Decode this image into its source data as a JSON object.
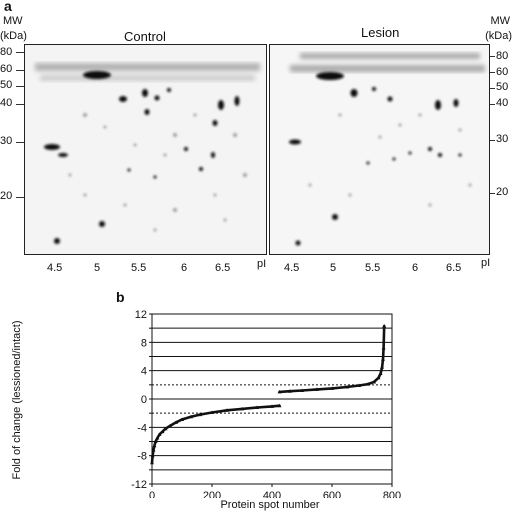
{
  "panel_a": {
    "letter": "a",
    "mw_title_line1": "MW",
    "mw_title_line2": "(kDa)",
    "mw_ticks": [
      "80",
      "60",
      "50",
      "40",
      "30",
      "20"
    ],
    "gels": [
      {
        "label": "Control",
        "pi_ticks": [
          "4.5",
          "5",
          "5.5",
          "6",
          "6.5"
        ],
        "pi_label": "pI"
      },
      {
        "label": "Lesion",
        "pi_ticks": [
          "4.5",
          "5",
          "5.5",
          "6",
          "6.5"
        ],
        "pi_label": "pI"
      }
    ]
  },
  "panel_b": {
    "letter": "b",
    "chart_data": {
      "type": "scatter",
      "title": "",
      "xlabel": "Protein spot number",
      "ylabel": "Fold of change (lessioned/intact)",
      "xlim": [
        0,
        800
      ],
      "ylim": [
        -12,
        12
      ],
      "x_ticks": [
        0,
        200,
        400,
        600,
        800
      ],
      "y_ticks": [
        -12,
        -10,
        -8,
        -6,
        -4,
        -2,
        0,
        2,
        4,
        6,
        8,
        10,
        12
      ],
      "y_tick_labels": [
        "-12",
        "",
        "-8",
        "",
        "-4",
        "",
        "0",
        "",
        "4",
        "",
        "8",
        "",
        "12"
      ],
      "grid": "horizontal",
      "threshold_lines": [
        2,
        -2
      ],
      "series": [
        {
          "values_note": "",
          "points": [
            [
              0,
              -9.0
            ],
            [
              2,
              -8.0
            ],
            [
              5,
              -7.2
            ],
            [
              8,
              -6.6
            ],
            [
              12,
              -6.0
            ],
            [
              18,
              -5.5
            ],
            [
              25,
              -5.0
            ],
            [
              35,
              -4.6
            ],
            [
              45,
              -4.2
            ],
            [
              60,
              -3.8
            ],
            [
              80,
              -3.3
            ],
            [
              100,
              -2.9
            ],
            [
              130,
              -2.5
            ],
            [
              160,
              -2.2
            ],
            [
              200,
              -1.9
            ],
            [
              250,
              -1.6
            ],
            [
              300,
              -1.4
            ],
            [
              350,
              -1.2
            ],
            [
              400,
              -1.05
            ],
            [
              425,
              -0.95
            ]
          ]
        },
        {
          "values_note": "",
          "points": [
            [
              425,
              1.0
            ],
            [
              460,
              1.1
            ],
            [
              500,
              1.2
            ],
            [
              550,
              1.35
            ],
            [
              600,
              1.5
            ],
            [
              650,
              1.7
            ],
            [
              690,
              1.9
            ],
            [
              720,
              2.1
            ],
            [
              740,
              2.4
            ],
            [
              755,
              3.0
            ],
            [
              762,
              3.6
            ],
            [
              767,
              4.5
            ],
            [
              770,
              5.6
            ],
            [
              772,
              7.2
            ],
            [
              774,
              10.3
            ]
          ]
        }
      ]
    }
  }
}
